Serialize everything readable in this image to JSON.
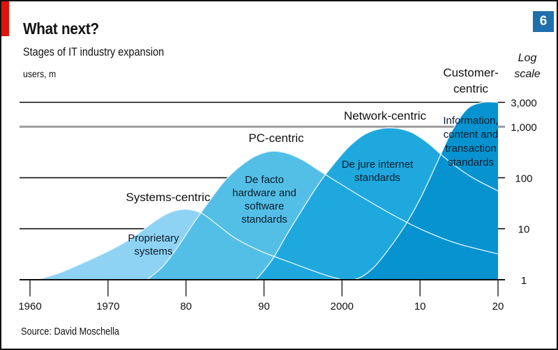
{
  "chart_data": {
    "type": "area",
    "title": "What next?",
    "subtitle": "Stages of IT industry expansion",
    "units": "users, m",
    "badge": "6",
    "yscale_note": [
      "Log",
      "scale"
    ],
    "source": "Source: David Moschella",
    "x_ticks": [
      {
        "year": 1960,
        "label": "1960"
      },
      {
        "year": 1970,
        "label": "1970"
      },
      {
        "year": 1980,
        "label": "80"
      },
      {
        "year": 1990,
        "label": "90"
      },
      {
        "year": 2000,
        "label": "2000"
      },
      {
        "year": 2010,
        "label": "10"
      },
      {
        "year": 2020,
        "label": "20"
      }
    ],
    "y_ticks": [
      {
        "value": 1,
        "label": "1"
      },
      {
        "value": 10,
        "label": "10"
      },
      {
        "value": 100,
        "label": "100"
      },
      {
        "value": 1000,
        "label": "1,000"
      },
      {
        "value": 3000,
        "label": "3,000"
      }
    ],
    "xlim": [
      1960,
      2020
    ],
    "ylim": [
      1,
      3000
    ],
    "series": [
      {
        "name": "Systems-centric",
        "inner_label": [
          "Proprietary",
          "systems"
        ],
        "color": "#8fd3f4",
        "points": [
          [
            1961,
            1
          ],
          [
            1964,
            1.4
          ],
          [
            1967,
            2.2
          ],
          [
            1970,
            3.6
          ],
          [
            1973,
            6.5
          ],
          [
            1976,
            14
          ],
          [
            1978,
            21
          ],
          [
            1980,
            24
          ],
          [
            1982,
            20
          ],
          [
            1984,
            12
          ],
          [
            1986,
            7
          ],
          [
            1988,
            4.7
          ],
          [
            1990,
            3.4
          ],
          [
            1993,
            2.3
          ],
          [
            1996,
            1.55
          ],
          [
            1998,
            1.22
          ],
          [
            2000,
            1
          ]
        ]
      },
      {
        "name": "PC-centric",
        "inner_label": [
          "De facto",
          "hardware and",
          "software",
          "standards"
        ],
        "color": "#54bfe6",
        "points": [
          [
            1975,
            1
          ],
          [
            1977,
            1.8
          ],
          [
            1979,
            4.5
          ],
          [
            1981,
            13
          ],
          [
            1983,
            35
          ],
          [
            1985,
            88
          ],
          [
            1987,
            170
          ],
          [
            1989,
            270
          ],
          [
            1991,
            330
          ],
          [
            1993,
            300
          ],
          [
            1995,
            220
          ],
          [
            1997,
            140
          ],
          [
            1999,
            90
          ],
          [
            2003,
            38
          ],
          [
            2007,
            17
          ],
          [
            2011,
            8.5
          ],
          [
            2015,
            5
          ],
          [
            2020,
            3.2
          ]
        ]
      },
      {
        "name": "Network-centric",
        "inner_label": [
          "De jure internet",
          "standards"
        ],
        "color": "#1fa8dd",
        "points": [
          [
            1989,
            1
          ],
          [
            1991,
            2.4
          ],
          [
            1993,
            8
          ],
          [
            1995,
            25
          ],
          [
            1997,
            75
          ],
          [
            1999,
            190
          ],
          [
            2001,
            420
          ],
          [
            2003,
            720
          ],
          [
            2005,
            920
          ],
          [
            2007,
            930
          ],
          [
            2009,
            760
          ],
          [
            2011,
            480
          ],
          [
            2013,
            260
          ],
          [
            2015,
            150
          ],
          [
            2017,
            95
          ],
          [
            2020,
            55
          ]
        ]
      },
      {
        "name": "Customer-centric",
        "name_lines": [
          "Customer-",
          "centric"
        ],
        "inner_label": [
          "Information,",
          "content and",
          "transaction",
          "standards"
        ],
        "color": "#0793cf",
        "points": [
          [
            2000,
            1
          ],
          [
            2002,
            1.05
          ],
          [
            2004,
            1.7
          ],
          [
            2006,
            4
          ],
          [
            2008,
            11
          ],
          [
            2010,
            38
          ],
          [
            2012,
            170
          ],
          [
            2014,
            780
          ],
          [
            2016,
            2200
          ],
          [
            2018,
            3000
          ],
          [
            2020,
            3000
          ]
        ]
      }
    ]
  },
  "colors": {
    "accent_red": "#e3120b",
    "badge_bg": "#1f6fad",
    "gridline_dark": "#111111",
    "gridline_light": "#9a9a9a"
  }
}
